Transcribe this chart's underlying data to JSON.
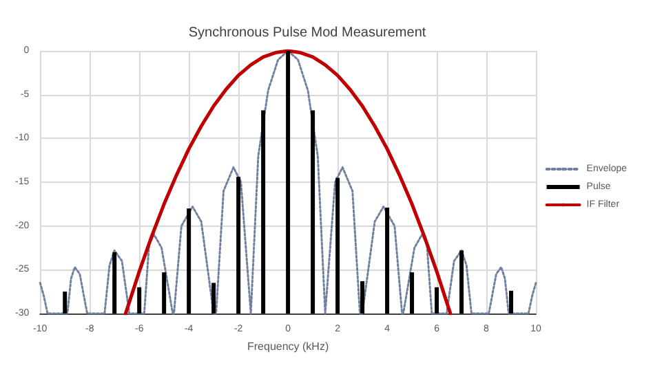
{
  "chart_data": {
    "type": "line",
    "title": "Synchronous Pulse Mod Measurement",
    "xlabel": "Frequency (kHz)",
    "xlim": [
      -10,
      10
    ],
    "xticks": [
      -10,
      -8,
      -6,
      -4,
      -2,
      0,
      2,
      4,
      6,
      8,
      10
    ],
    "ylim": [
      -30,
      0
    ],
    "yticks": [
      -30,
      -25,
      -20,
      -15,
      -10,
      -5,
      0
    ],
    "grid": true,
    "legend": "right",
    "marker": "none",
    "series": [
      {
        "name": "Envelope",
        "line_style": "dotted",
        "color": "#7080a0",
        "x": [
          -10,
          -9.85,
          -9.7,
          -8.9,
          -8.75,
          -8.6,
          -8.4,
          -8.1,
          -7.4,
          -7.2,
          -7.0,
          -6.7,
          -6.4,
          -5.8,
          -5.6,
          -5.4,
          -5.1,
          -4.65,
          -4.6,
          -4.3,
          -3.85,
          -3.5,
          -3.0,
          -2.9,
          -2.6,
          -2.2,
          -1.9,
          -1.5,
          -1.2,
          -0.8,
          -0.4,
          0,
          0.4,
          0.8,
          1.2,
          1.5,
          1.9,
          2.2,
          2.6,
          2.9,
          3.0,
          3.5,
          3.85,
          4.3,
          4.6,
          4.65,
          5.1,
          5.4,
          5.6,
          5.8,
          6.4,
          6.7,
          7.0,
          7.2,
          7.4,
          8.1,
          8.4,
          8.6,
          8.75,
          8.9,
          9.7,
          9.85,
          10
        ],
        "values": [
          -26.5,
          -28,
          -30,
          -30,
          -26,
          -24.7,
          -25.5,
          -30,
          -30,
          -24.5,
          -22.8,
          -24,
          -30,
          -30,
          -22,
          -21,
          -22.5,
          -30,
          -30,
          -20,
          -17.8,
          -19.5,
          -30,
          -30,
          -16,
          -13.3,
          -15,
          -30,
          -12,
          -4.5,
          -1,
          0,
          -1,
          -4.5,
          -12,
          -30,
          -15,
          -13.3,
          -16,
          -30,
          -30,
          -19.5,
          -17.8,
          -20,
          -30,
          -30,
          -22.5,
          -21,
          -22,
          -30,
          -30,
          -24,
          -22.8,
          -24.5,
          -30,
          -30,
          -25.5,
          -24.7,
          -26,
          -30,
          -30,
          -28,
          -26.5
        ]
      },
      {
        "name": "Pulse",
        "type": "bar",
        "color": "#000000",
        "x": [
          -9,
          -7,
          -6,
          -5,
          -4,
          -3,
          -2,
          -1,
          0,
          1,
          2,
          3,
          4,
          5,
          6,
          7,
          9
        ],
        "base": [
          -30,
          -30,
          -30,
          -30,
          -30,
          -30,
          -30,
          -30,
          -30,
          -30,
          -30,
          -30,
          -30,
          -30,
          -30,
          -30,
          -30
        ],
        "values": [
          2.5,
          7,
          3,
          4.7,
          12,
          3.5,
          15.6,
          23.2,
          30,
          23.2,
          15.5,
          3.7,
          12.1,
          4.7,
          3,
          7.2,
          2.6
        ]
      },
      {
        "name": "IF Filter",
        "line_style": "solid",
        "color": "#c00000",
        "x": [
          -6.55,
          -6,
          -5.5,
          -5,
          -4.5,
          -4,
          -3.5,
          -3,
          -2.5,
          -2,
          -1.5,
          -1,
          -0.5,
          0,
          0.5,
          1,
          1.5,
          2,
          2.5,
          3,
          3.5,
          4,
          4.5,
          5,
          5.5,
          6,
          6.55
        ],
        "values": [
          -30,
          -25.2,
          -21.2,
          -17.5,
          -14.2,
          -11.2,
          -8.6,
          -6.3,
          -4.4,
          -2.8,
          -1.6,
          -0.7,
          -0.2,
          0,
          -0.2,
          -0.7,
          -1.6,
          -2.8,
          -4.4,
          -6.3,
          -8.6,
          -11.2,
          -14.2,
          -17.5,
          -21.2,
          -25.2,
          -30
        ]
      }
    ]
  }
}
